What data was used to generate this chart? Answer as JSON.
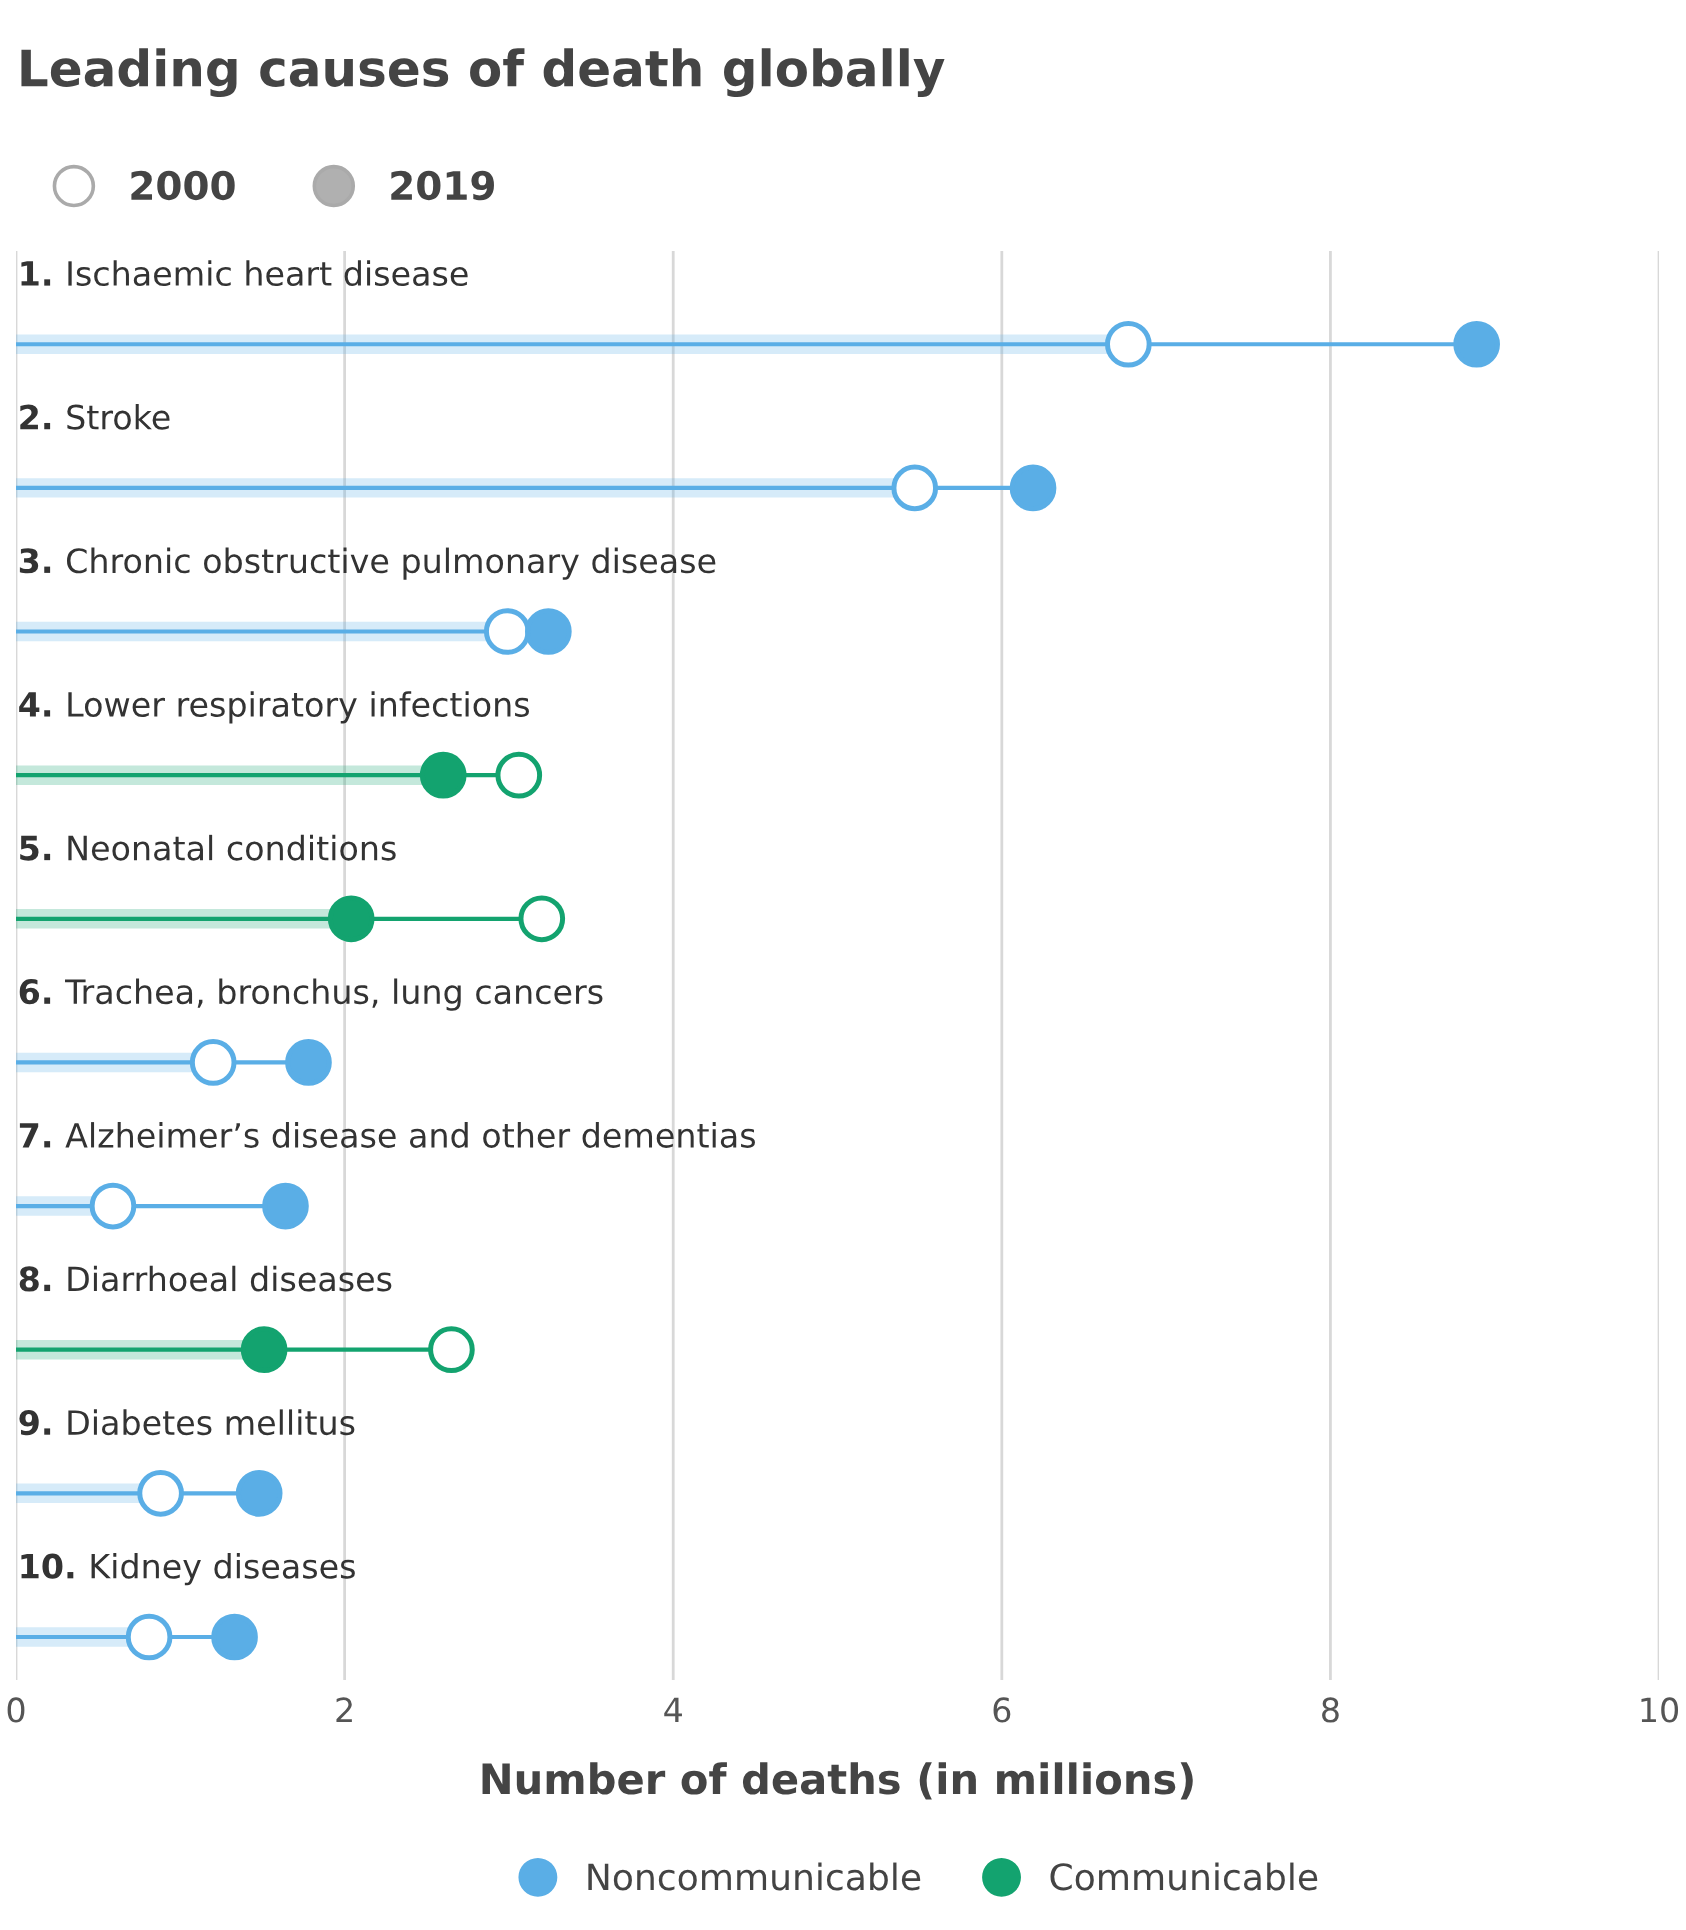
{
  "chart_data": {
    "type": "lollipop",
    "orientation": "horizontal",
    "title": "Leading causes of death globally",
    "categories": [
      "1. Ischaemic heart disease",
      "2. Stroke",
      "3. Chronic obstructive pulmonary disease",
      "4. Lower respiratory infections",
      "5. Neonatal conditions",
      "6. Trachea, bronchus, lung cancers",
      "7. Alzheimer’s disease and other dementias",
      "8. Diarrhoeal diseases",
      "9. Diabetes mellitus",
      "10. Kidney diseases"
    ],
    "series": [
      {
        "name": "2000",
        "color": "#ffffff",
        "values": [
          6.77,
          5.47,
          2.99,
          3.06,
          3.2,
          1.2,
          0.59,
          2.65,
          0.88,
          0.81
        ]
      },
      {
        "name": "2019",
        "color": "#b0b0b0",
        "values": [
          8.89,
          6.19,
          3.24,
          2.6,
          2.04,
          1.78,
          1.64,
          1.51,
          1.48,
          1.33
        ],
        "colors": [
          "#5aaee6",
          "#5aaee6",
          "#5aaee6",
          "#13a36f",
          "#13a36f",
          "#5aaee6",
          "#5aaee6",
          "#13a36f",
          "#5aaee6",
          "#5aaee6"
        ]
      }
    ],
    "xlim": [
      0,
      10
    ],
    "xticks": [
      0,
      2,
      4,
      6,
      8,
      10
    ],
    "grid": "x",
    "legend": "top left",
    "marker": "circle",
    "xlabel": "Number of deaths (in millions)",
    "annotations": [
      "Noncommunicable",
      "Communicable"
    ]
  }
}
